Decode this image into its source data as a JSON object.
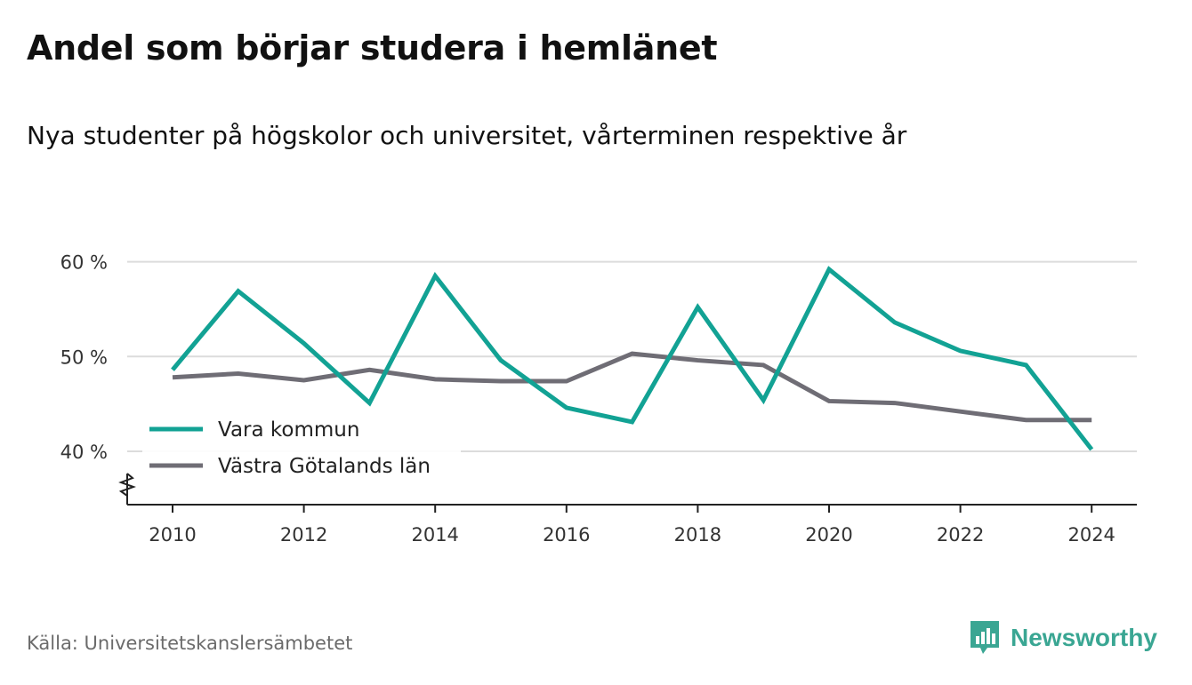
{
  "header": {
    "title": "Andel som börjar studera i hemlänet",
    "subtitle": "Nya studenter på högskolor och universitet, vårterminen respektive år"
  },
  "footer": {
    "source": "Källa: Universitetskanslersämbetet",
    "brand": "Newsworthy",
    "brand_icon": "bar-chart-icon",
    "brand_color": "#3aa693"
  },
  "chart_data": {
    "type": "line",
    "x": [
      2010,
      2011,
      2012,
      2013,
      2014,
      2015,
      2016,
      2017,
      2018,
      2019,
      2020,
      2021,
      2022,
      2023,
      2024
    ],
    "series": [
      {
        "name": "Vara kommun",
        "color": "#12a294",
        "values": [
          48.6,
          56.9,
          51.4,
          45.1,
          58.5,
          49.6,
          44.6,
          43.1,
          55.2,
          45.4,
          59.2,
          53.6,
          50.6,
          49.1,
          40.2
        ]
      },
      {
        "name": "Västra Götalands län",
        "color": "#6f6d75",
        "values": [
          47.8,
          48.2,
          47.5,
          48.6,
          47.6,
          47.4,
          47.4,
          50.3,
          49.6,
          49.1,
          45.3,
          45.1,
          44.2,
          43.3,
          43.3
        ]
      }
    ],
    "ylim": [
      34.5,
      60
    ],
    "yticks": [
      40,
      50,
      60
    ],
    "ytick_labels": [
      "40 %",
      "50 %",
      "60 %"
    ],
    "xticks": [
      2010,
      2012,
      2014,
      2016,
      2018,
      2020,
      2022,
      2024
    ],
    "xtick_labels": [
      "2010",
      "2012",
      "2014",
      "2016",
      "2018",
      "2020",
      "2022",
      "2024"
    ],
    "grid": true,
    "legend_position": "bottom-left",
    "axis_break": true
  }
}
